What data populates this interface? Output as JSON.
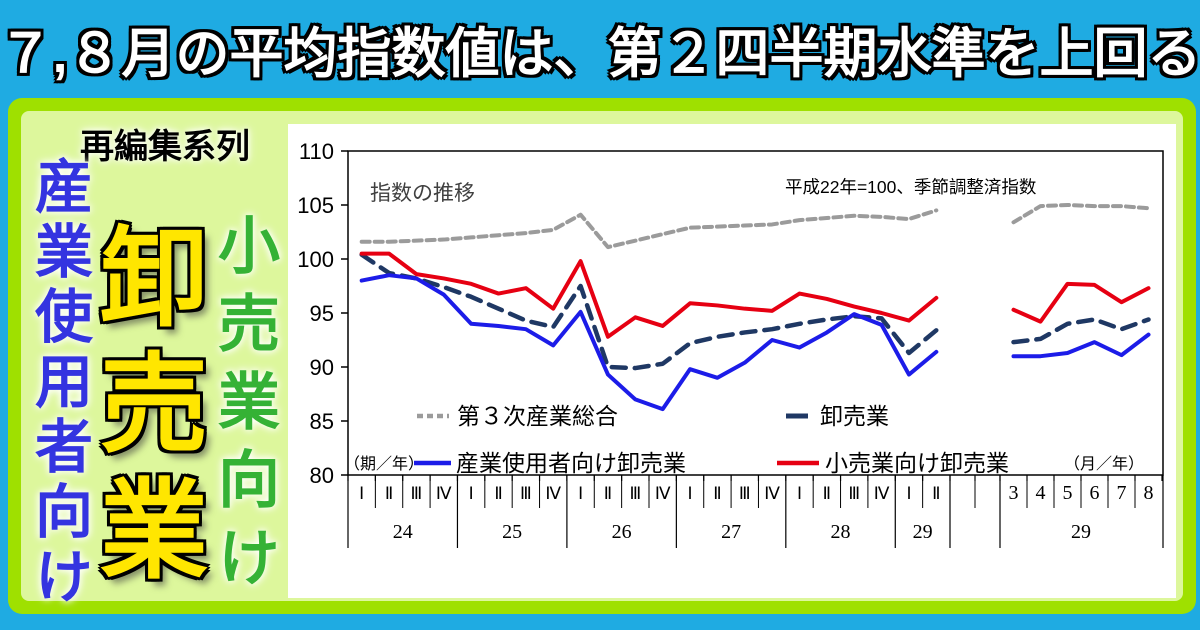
{
  "banner": {
    "title": "７,８月の平均指数値は、第２四半期水準を上回る"
  },
  "panel": {
    "badge": "再編集系列",
    "vertical_blue": "産業使用者向け",
    "vertical_yellow": "卸売業",
    "vertical_green": "小売業向け"
  },
  "colors": {
    "page_blue": "#1FABE2",
    "frame_green": "#9FE000",
    "panel_green": "#DDF79C",
    "label_blue": "#3434E0",
    "label_yellow": "#FFE600",
    "label_green": "#35B235",
    "line_gray": "#9B9B9B",
    "line_navy": "#1F3864",
    "line_blue": "#1C1CE8",
    "line_red": "#E60012"
  },
  "chart_data": {
    "type": "line",
    "title": "指数の推移",
    "note": "平成22年=100、季節調整済指数",
    "left_unit": "（期／年）",
    "right_unit": "（月／年）",
    "ylim": [
      80,
      110
    ],
    "yticks": [
      110,
      105,
      100,
      95,
      90,
      85,
      80
    ],
    "grid": false,
    "legend_position": "inside-bottom",
    "quarter_labels": [
      "Ⅰ",
      "Ⅱ",
      "Ⅲ",
      "Ⅳ",
      "Ⅰ",
      "Ⅱ",
      "Ⅲ",
      "Ⅳ",
      "Ⅰ",
      "Ⅱ",
      "Ⅲ",
      "Ⅳ",
      "Ⅰ",
      "Ⅱ",
      "Ⅲ",
      "Ⅳ",
      "Ⅰ",
      "Ⅱ",
      "Ⅲ",
      "Ⅳ",
      "Ⅰ",
      "Ⅱ"
    ],
    "quarter_years": [
      "24",
      "25",
      "26",
      "27",
      "28"
    ],
    "quarter_year_partial": "29",
    "month_labels": [
      "3",
      "4",
      "5",
      "6",
      "7",
      "8"
    ],
    "month_year": "29",
    "series": [
      {
        "name": "第３次産業総合",
        "color": "#9B9B9B",
        "dash": "8 5",
        "width": 4,
        "quarterly": [
          101.6,
          101.6,
          101.7,
          101.8,
          102.0,
          102.2,
          102.4,
          102.7,
          104.1,
          101.1,
          101.7,
          102.3,
          102.9,
          103.0,
          103.1,
          103.2,
          103.6,
          103.8,
          104.0,
          103.9,
          103.7,
          104.5
        ],
        "monthly": [
          103.4,
          104.9,
          105.0,
          104.9,
          104.9,
          104.7
        ]
      },
      {
        "name": "卸売業",
        "color": "#1F3864",
        "dash": "14 9",
        "width": 4.5,
        "quarterly": [
          100.4,
          98.7,
          98.2,
          97.4,
          96.5,
          95.4,
          94.3,
          93.7,
          97.5,
          90.0,
          89.9,
          90.3,
          92.2,
          92.8,
          93.2,
          93.5,
          94.0,
          94.4,
          94.7,
          94.5,
          91.3,
          93.4
        ],
        "monthly": [
          92.3,
          92.6,
          94.0,
          94.4,
          93.5,
          94.4
        ]
      },
      {
        "name": "産業使用者向け卸売業",
        "color": "#1C1CE8",
        "dash": null,
        "width": 4,
        "quarterly": [
          98.0,
          98.5,
          98.2,
          96.7,
          94.0,
          93.8,
          93.5,
          92.0,
          95.1,
          89.3,
          87.0,
          86.1,
          89.8,
          89.0,
          90.4,
          92.5,
          91.8,
          93.2,
          94.9,
          93.9,
          89.3,
          91.4
        ],
        "monthly": [
          91.0,
          91.0,
          91.3,
          92.3,
          91.1,
          93.0
        ]
      },
      {
        "name": "小売業向け卸売業",
        "color": "#E60012",
        "dash": null,
        "width": 4,
        "quarterly": [
          100.5,
          100.5,
          98.6,
          98.2,
          97.7,
          96.8,
          97.3,
          95.4,
          99.8,
          92.8,
          94.6,
          93.8,
          95.9,
          95.7,
          95.4,
          95.2,
          96.8,
          96.3,
          95.6,
          95.0,
          94.3,
          96.4
        ],
        "monthly": [
          95.3,
          94.2,
          97.7,
          97.6,
          96.0,
          97.3
        ]
      }
    ]
  }
}
